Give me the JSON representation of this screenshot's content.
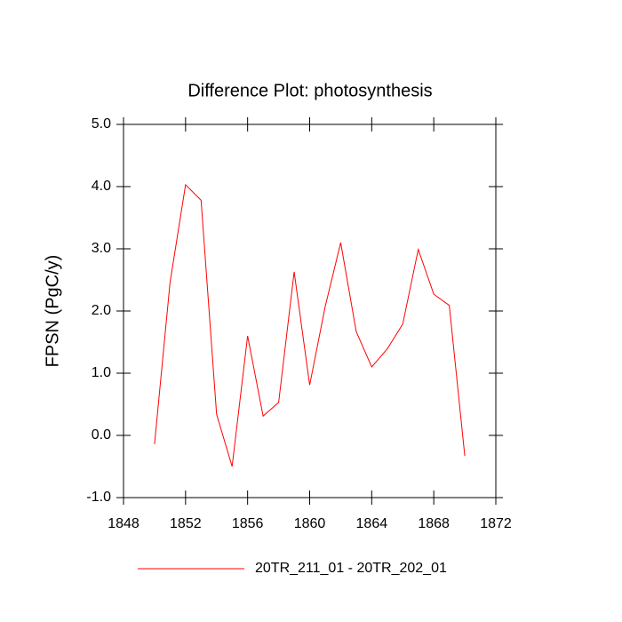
{
  "chart_data": {
    "type": "line",
    "title": "Difference Plot: photosynthesis",
    "y_label": "FPSN  (PgC/y)",
    "x": [
      1850,
      1851,
      1852,
      1853,
      1854,
      1855,
      1856,
      1857,
      1858,
      1859,
      1860,
      1861,
      1862,
      1863,
      1864,
      1865,
      1866,
      1867,
      1868,
      1869,
      1870
    ],
    "series": [
      {
        "name": "20TR_211_01 - 20TR_202_01",
        "color": "#ff0000",
        "values": [
          -0.14,
          2.46,
          4.03,
          3.78,
          0.34,
          -0.5,
          1.6,
          0.31,
          0.53,
          2.63,
          0.81,
          2.07,
          3.1,
          1.67,
          1.1,
          1.39,
          1.79,
          2.99,
          2.27,
          2.09,
          -0.33
        ]
      }
    ],
    "xlim": [
      1848,
      1872
    ],
    "xticks": [
      1848,
      1852,
      1856,
      1860,
      1864,
      1868,
      1872
    ],
    "ylim": [
      -1,
      5
    ],
    "yticks": [
      {
        "value": -1,
        "label": "-1.0"
      },
      {
        "value": 0,
        "label": "0.0"
      },
      {
        "value": 1,
        "label": "1.0"
      },
      {
        "value": 2,
        "label": "2.0"
      },
      {
        "value": 3,
        "label": "3.0"
      },
      {
        "value": 4,
        "label": "4.0"
      },
      {
        "value": 5,
        "label": "5.0"
      }
    ],
    "legend": "bottom"
  }
}
